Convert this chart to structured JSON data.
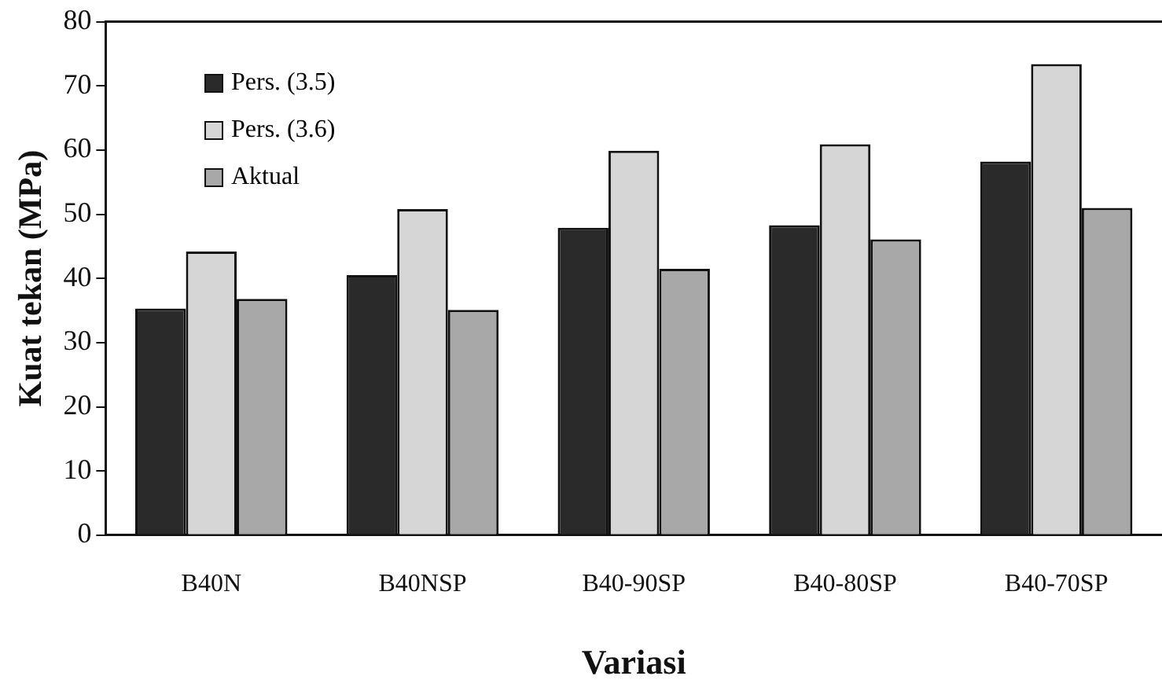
{
  "chart_data": {
    "type": "bar",
    "xlabel": "Variasi",
    "ylabel": "Kuat tekan (MPa)",
    "categories": [
      "B40N",
      "B40NSP",
      "B40-90SP",
      "B40-80SP",
      "B40-70SP"
    ],
    "series": [
      {
        "name": "Pers. (3.5)",
        "color": "#2a2a2a",
        "values": [
          35.3,
          40.5,
          47.9,
          48.3,
          58.2
        ]
      },
      {
        "name": "Pers. (3.6)",
        "color": "#d6d6d6",
        "values": [
          44.2,
          50.8,
          59.9,
          60.9,
          73.4
        ]
      },
      {
        "name": "Aktual",
        "color": "#a8a8a8",
        "values": [
          36.8,
          35.1,
          41.5,
          46.1,
          51.0
        ]
      }
    ],
    "ylim": [
      0,
      80
    ],
    "yticks": [
      0,
      10,
      20,
      30,
      40,
      50,
      60,
      70,
      80
    ],
    "grid": false,
    "legend": "top left"
  }
}
